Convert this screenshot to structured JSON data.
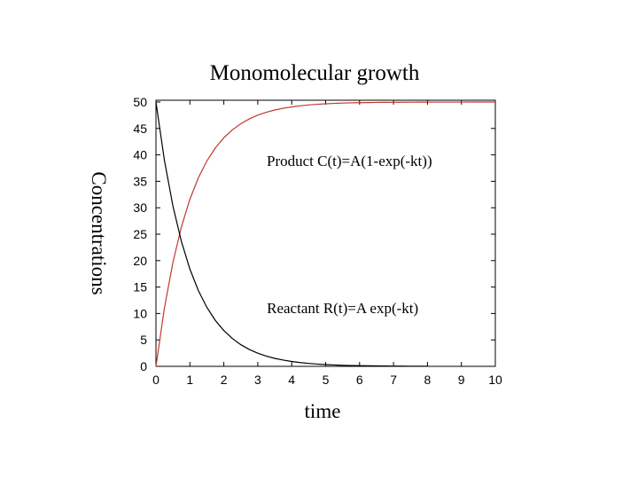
{
  "chart_data": {
    "type": "line",
    "title": "Monomolecular growth",
    "xlabel": "time",
    "ylabel": "Concentrations",
    "xlim": [
      0,
      10
    ],
    "ylim": [
      0,
      50
    ],
    "x_ticks": [
      "0",
      "1",
      "2",
      "3",
      "4",
      "5",
      "6",
      "7",
      "8",
      "9",
      "10"
    ],
    "y_ticks": [
      "0",
      "5",
      "10",
      "15",
      "20",
      "25",
      "30",
      "35",
      "40",
      "45",
      "50"
    ],
    "grid": false,
    "series": [
      {
        "name": "Product",
        "color": "#c0392b",
        "x": [
          0,
          0.25,
          0.5,
          0.75,
          1,
          1.25,
          1.5,
          1.75,
          2,
          2.25,
          2.5,
          2.75,
          3,
          3.25,
          3.5,
          3.75,
          4,
          4.25,
          4.5,
          4.75,
          5,
          5.25,
          5.5,
          5.75,
          6,
          6.25,
          6.5,
          6.75,
          7,
          7.25,
          7.5,
          7.75,
          8,
          8.25,
          8.5,
          8.75,
          9,
          9.25,
          9.5,
          9.75,
          10
        ],
        "y": [
          0,
          11.06,
          19.67,
          26.38,
          31.61,
          35.68,
          38.84,
          41.31,
          43.23,
          44.73,
          45.89,
          46.8,
          47.51,
          48.06,
          48.49,
          48.82,
          49.08,
          49.28,
          49.44,
          49.57,
          49.66,
          49.74,
          49.8,
          49.84,
          49.88,
          49.9,
          49.93,
          49.94,
          49.95,
          49.96,
          49.97,
          49.98,
          49.98,
          49.99,
          49.99,
          49.99,
          49.99,
          50.0,
          50.0,
          50.0,
          50.0
        ]
      },
      {
        "name": "Reactant",
        "color": "#000000",
        "x": [
          0,
          0.25,
          0.5,
          0.75,
          1,
          1.25,
          1.5,
          1.75,
          2,
          2.25,
          2.5,
          2.75,
          3,
          3.25,
          3.5,
          3.75,
          4,
          4.25,
          4.5,
          4.75,
          5,
          5.25,
          5.5,
          5.75,
          6,
          6.25,
          6.5,
          6.75,
          7,
          7.25,
          7.5,
          7.75,
          8
        ],
        "y": [
          50,
          38.94,
          30.33,
          23.62,
          18.39,
          14.32,
          11.16,
          8.69,
          6.77,
          5.27,
          4.1,
          3.2,
          2.49,
          1.94,
          1.51,
          1.18,
          0.92,
          0.71,
          0.56,
          0.43,
          0.34,
          0.26,
          0.2,
          0.16,
          0.12,
          0.1,
          0.08,
          0.06,
          0.05,
          0.04,
          0.03,
          0.02,
          0.02
        ]
      }
    ],
    "annotations": [
      {
        "text": "Product C(t)=A(1-exp(-kt))",
        "x": 5.7,
        "y": 38.9
      },
      {
        "text": "Reactant R(t)=A exp(-kt)",
        "x": 5.5,
        "y": 11.1
      }
    ]
  }
}
